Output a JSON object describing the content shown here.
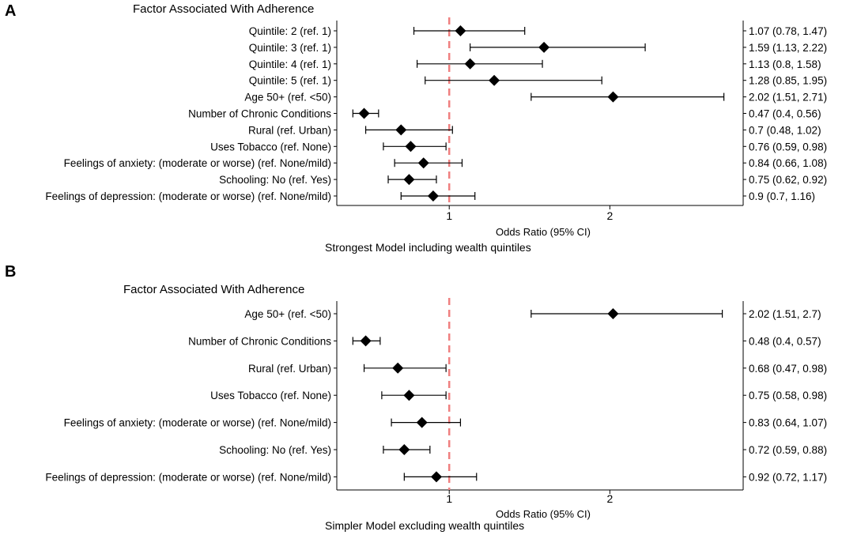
{
  "chart_data": [
    {
      "type": "forest",
      "panel_letter": "A",
      "header": "Factor Associated With Adherence",
      "xlabel": "Odds Ratio (95% CI)",
      "subtitle": "Strongest Model including wealth quintiles",
      "xlim": [
        0.3,
        2.83
      ],
      "xticks": [
        1,
        2
      ],
      "xtick_labels": [
        "1",
        "2"
      ],
      "reference_value": 1,
      "reference_color": "#f08080",
      "rows": [
        {
          "label": "Quintile: 2 (ref. 1)",
          "or": 1.07,
          "lo": 0.78,
          "hi": 1.47,
          "text": "1.07 (0.78, 1.47)"
        },
        {
          "label": "Quintile: 3 (ref. 1)",
          "or": 1.59,
          "lo": 1.13,
          "hi": 2.22,
          "text": "1.59 (1.13, 2.22)"
        },
        {
          "label": "Quintile: 4 (ref. 1)",
          "or": 1.13,
          "lo": 0.8,
          "hi": 1.58,
          "text": "1.13 (0.8, 1.58)"
        },
        {
          "label": "Quintile: 5 (ref. 1)",
          "or": 1.28,
          "lo": 0.85,
          "hi": 1.95,
          "text": "1.28 (0.85, 1.95)"
        },
        {
          "label": "Age 50+ (ref. <50)",
          "or": 2.02,
          "lo": 1.51,
          "hi": 2.71,
          "text": "2.02 (1.51, 2.71)"
        },
        {
          "label": "Number of Chronic Conditions",
          "or": 0.47,
          "lo": 0.4,
          "hi": 0.56,
          "text": "0.47 (0.4, 0.56)"
        },
        {
          "label": "Rural (ref. Urban)",
          "or": 0.7,
          "lo": 0.48,
          "hi": 1.02,
          "text": "0.7 (0.48, 1.02)"
        },
        {
          "label": "Uses Tobacco (ref. None)",
          "or": 0.76,
          "lo": 0.59,
          "hi": 0.98,
          "text": "0.76 (0.59, 0.98)"
        },
        {
          "label": "Feelings of anxiety: (moderate or worse) (ref. None/mild)",
          "or": 0.84,
          "lo": 0.66,
          "hi": 1.08,
          "text": "0.84 (0.66, 1.08)"
        },
        {
          "label": "Schooling: No (ref. Yes)",
          "or": 0.75,
          "lo": 0.62,
          "hi": 0.92,
          "text": "0.75 (0.62, 0.92)"
        },
        {
          "label": "Feelings of depression:  (moderate or worse) (ref. None/mild)",
          "or": 0.9,
          "lo": 0.7,
          "hi": 1.16,
          "text": "0.9 (0.7, 1.16)"
        }
      ]
    },
    {
      "type": "forest",
      "panel_letter": "B",
      "header": "Factor Associated With Adherence",
      "xlabel": "Odds Ratio (95% CI)",
      "subtitle": "Simpler Model excluding wealth quintiles",
      "xlim": [
        0.3,
        2.83
      ],
      "xticks": [
        1,
        2
      ],
      "xtick_labels": [
        "1",
        "2"
      ],
      "reference_value": 1,
      "reference_color": "#f08080",
      "rows": [
        {
          "label": "Age 50+ (ref. <50)",
          "or": 2.02,
          "lo": 1.51,
          "hi": 2.7,
          "text": "2.02 (1.51, 2.7)"
        },
        {
          "label": "Number of Chronic Conditions",
          "or": 0.48,
          "lo": 0.4,
          "hi": 0.57,
          "text": "0.48 (0.4, 0.57)"
        },
        {
          "label": "Rural (ref. Urban)",
          "or": 0.68,
          "lo": 0.47,
          "hi": 0.98,
          "text": "0.68 (0.47, 0.98)"
        },
        {
          "label": "Uses Tobacco (ref. None)",
          "or": 0.75,
          "lo": 0.58,
          "hi": 0.98,
          "text": "0.75 (0.58, 0.98)"
        },
        {
          "label": "Feelings of anxiety: (moderate or worse) (ref. None/mild)",
          "or": 0.83,
          "lo": 0.64,
          "hi": 1.07,
          "text": "0.83 (0.64, 1.07)"
        },
        {
          "label": "Schooling: No (ref. Yes)",
          "or": 0.72,
          "lo": 0.59,
          "hi": 0.88,
          "text": "0.72 (0.59, 0.88)"
        },
        {
          "label": "Feelings of depression: (moderate or worse) (ref. None/mild)",
          "or": 0.92,
          "lo": 0.72,
          "hi": 1.17,
          "text": "0.92 (0.72, 1.17)"
        }
      ]
    }
  ]
}
